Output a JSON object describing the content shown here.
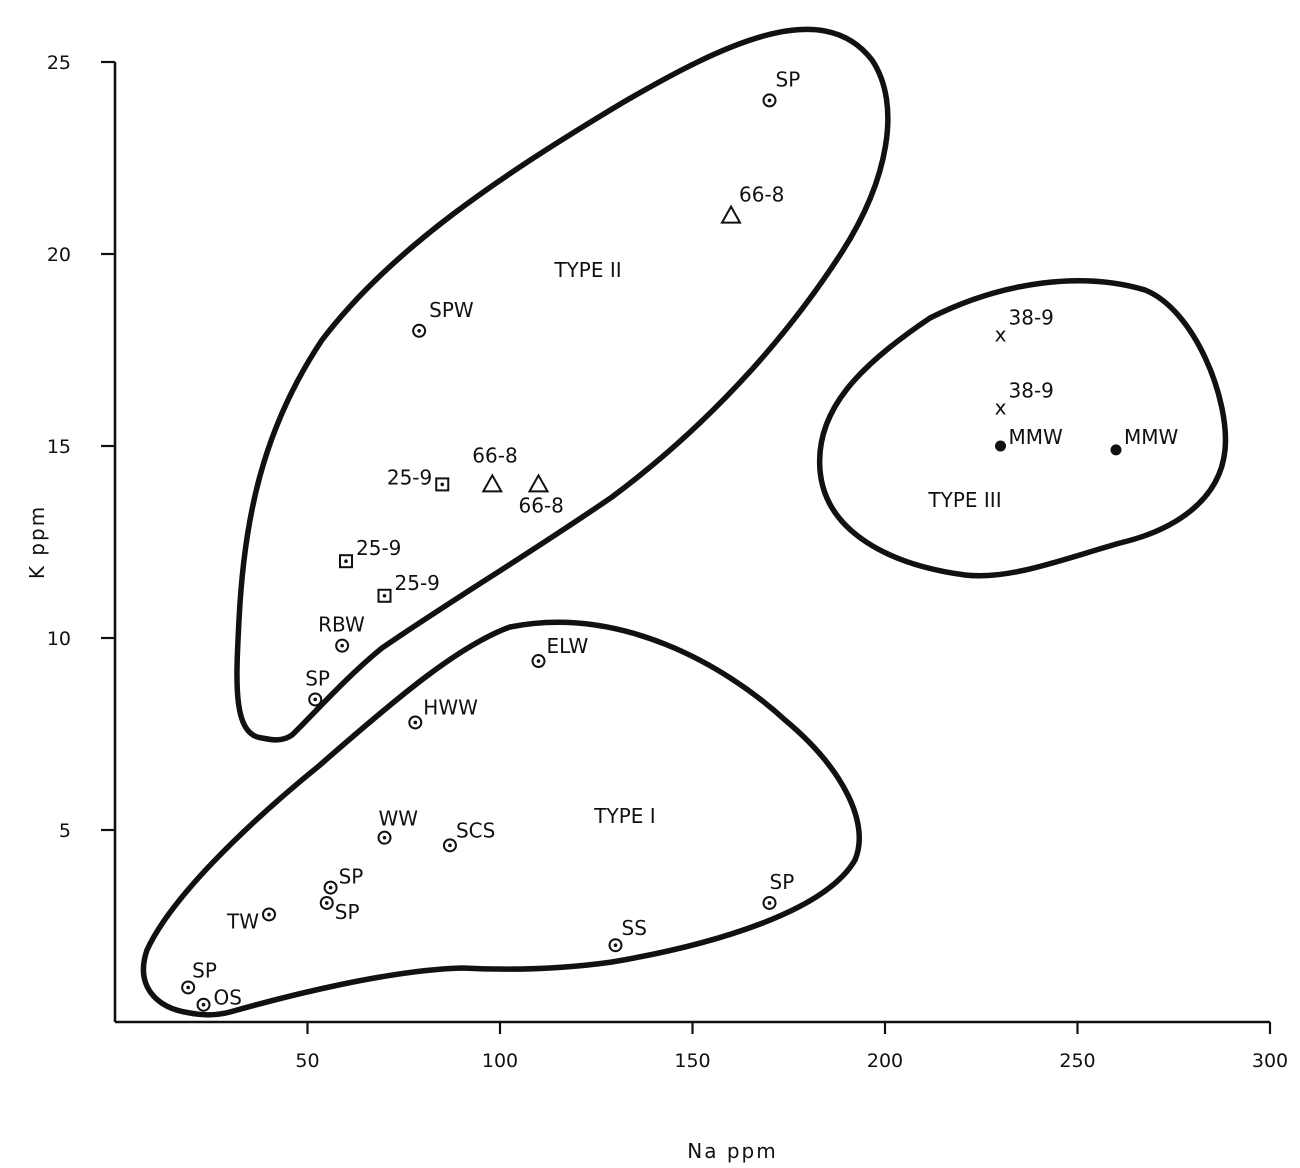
{
  "chart_data": {
    "type": "scatter",
    "title": "",
    "xlabel": "Na ppm",
    "ylabel": "K ppm",
    "xlim": [
      0,
      300
    ],
    "ylim": [
      0,
      25
    ],
    "x_ticks": [
      50,
      100,
      150,
      200,
      250,
      300
    ],
    "y_ticks": [
      5,
      10,
      15,
      20,
      25
    ],
    "grid": false,
    "regions": [
      {
        "label": "TYPE I"
      },
      {
        "label": "TYPE II"
      },
      {
        "label": "TYPE III"
      }
    ],
    "points": [
      {
        "label": "SP",
        "x": 170,
        "y": 24.0,
        "marker": "circle-dot"
      },
      {
        "label": "66-8",
        "x": 160,
        "y": 21.0,
        "marker": "triangle"
      },
      {
        "label": "SPW",
        "x": 79,
        "y": 18.0,
        "marker": "circle-dot"
      },
      {
        "label": "25-9",
        "x": 85,
        "y": 14.0,
        "marker": "square-dot"
      },
      {
        "label": "66-8",
        "x": 98,
        "y": 14.0,
        "marker": "triangle"
      },
      {
        "label": "66-8",
        "x": 110,
        "y": 14.0,
        "marker": "triangle"
      },
      {
        "label": "25-9",
        "x": 60,
        "y": 12.0,
        "marker": "square-dot"
      },
      {
        "label": "25-9",
        "x": 70,
        "y": 11.1,
        "marker": "square-dot"
      },
      {
        "label": "RBW",
        "x": 59,
        "y": 9.8,
        "marker": "circle-dot"
      },
      {
        "label": "SP",
        "x": 52,
        "y": 8.4,
        "marker": "circle-dot"
      },
      {
        "label": "ELW",
        "x": 110,
        "y": 9.4,
        "marker": "circle-dot"
      },
      {
        "label": "HWW",
        "x": 78,
        "y": 7.8,
        "marker": "circle-dot"
      },
      {
        "label": "WW",
        "x": 70,
        "y": 4.8,
        "marker": "circle-dot"
      },
      {
        "label": "SCS",
        "x": 87,
        "y": 4.6,
        "marker": "circle-dot"
      },
      {
        "label": "SP",
        "x": 56,
        "y": 3.5,
        "marker": "circle-dot"
      },
      {
        "label": "SP",
        "x": 55,
        "y": 3.1,
        "marker": "circle-dot"
      },
      {
        "label": "TW",
        "x": 40,
        "y": 2.8,
        "marker": "circle-dot"
      },
      {
        "label": "SP",
        "x": 170,
        "y": 3.1,
        "marker": "circle-dot"
      },
      {
        "label": "SS",
        "x": 130,
        "y": 2.0,
        "marker": "circle-dot"
      },
      {
        "label": "SP",
        "x": 19,
        "y": 0.9,
        "marker": "circle-dot"
      },
      {
        "label": "OS",
        "x": 23,
        "y": 0.45,
        "marker": "circle-dot"
      },
      {
        "label": "38-9",
        "x": 230,
        "y": 17.9,
        "marker": "x"
      },
      {
        "label": "38-9",
        "x": 230,
        "y": 16.0,
        "marker": "x"
      },
      {
        "label": "MMW",
        "x": 230,
        "y": 15.0,
        "marker": "filled-circle"
      },
      {
        "label": "MMW",
        "x": 260,
        "y": 14.9,
        "marker": "filled-circle"
      }
    ]
  }
}
